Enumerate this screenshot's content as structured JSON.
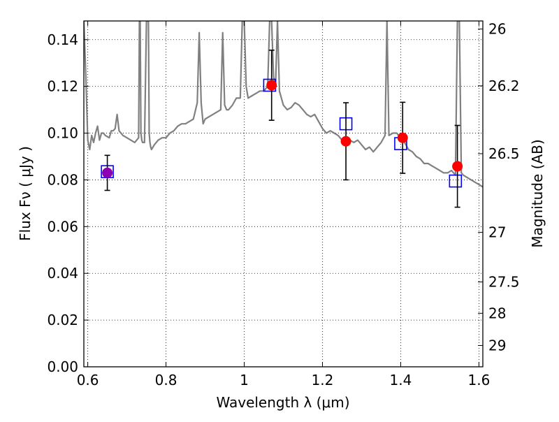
{
  "chart_data": {
    "type": "scatter",
    "xlabel": "Wavelength  λ (μm)",
    "ylabel": "Flux  Fν  ( μJy )",
    "y2label": "Magnitude (AB)",
    "xlim": [
      0.59,
      1.61
    ],
    "ylim": [
      0.0,
      0.148
    ],
    "grid": true,
    "x_ticks": [
      0.6,
      0.8,
      1.0,
      1.2,
      1.4,
      1.6
    ],
    "x_tick_labels": [
      "0.6",
      "0.8",
      "1",
      "1.2",
      "1.4",
      "1.6"
    ],
    "y_ticks": [
      0.0,
      0.02,
      0.04,
      0.06,
      0.08,
      0.1,
      0.12,
      0.14
    ],
    "y_tick_labels": [
      "0.00",
      "0.02",
      "0.04",
      "0.06",
      "0.08",
      "0.10",
      "0.12",
      "0.14"
    ],
    "mag_ticks": [
      26,
      26.2,
      26.5,
      27,
      27.5,
      28,
      29
    ],
    "mag_tick_labels": [
      "26",
      "26.2",
      "26.5",
      "27",
      "27.5",
      "28",
      "29"
    ],
    "observed": {
      "x": [
        0.65,
        1.07,
        1.26,
        1.405,
        1.545
      ],
      "y": [
        0.083,
        0.1205,
        0.0965,
        0.098,
        0.0858
      ],
      "err": [
        0.0075,
        0.015,
        0.0165,
        0.0152,
        0.0175
      ],
      "colors": [
        "#8b00b0",
        "#ff0000",
        "#ff0000",
        "#ff0000",
        "#ff0000"
      ]
    },
    "model_photometry": {
      "x": [
        0.65,
        1.065,
        1.26,
        1.4,
        1.54
      ],
      "y": [
        0.0835,
        0.1205,
        0.104,
        0.0955,
        0.0795
      ]
    },
    "model_spectrum": {
      "x": [
        0.59,
        0.595,
        0.6,
        0.605,
        0.61,
        0.615,
        0.62,
        0.625,
        0.63,
        0.635,
        0.64,
        0.645,
        0.655,
        0.66,
        0.665,
        0.67,
        0.675,
        0.68,
        0.69,
        0.7,
        0.71,
        0.72,
        0.725,
        0.73,
        0.732,
        0.734,
        0.736,
        0.738,
        0.74,
        0.745,
        0.75,
        0.755,
        0.757,
        0.759,
        0.761,
        0.763,
        0.77,
        0.78,
        0.79,
        0.8,
        0.81,
        0.82,
        0.83,
        0.84,
        0.85,
        0.86,
        0.87,
        0.88,
        0.885,
        0.89,
        0.895,
        0.9,
        0.91,
        0.92,
        0.93,
        0.94,
        0.945,
        0.95,
        0.955,
        0.96,
        0.97,
        0.98,
        0.99,
        0.995,
        1.0,
        1.005,
        1.01,
        1.02,
        1.03,
        1.04,
        1.05,
        1.06,
        1.065,
        1.07,
        1.075,
        1.08,
        1.085,
        1.09,
        1.1,
        1.11,
        1.12,
        1.13,
        1.14,
        1.15,
        1.16,
        1.17,
        1.18,
        1.19,
        1.2,
        1.21,
        1.22,
        1.23,
        1.24,
        1.25,
        1.26,
        1.27,
        1.28,
        1.29,
        1.3,
        1.31,
        1.32,
        1.33,
        1.34,
        1.35,
        1.36,
        1.365,
        1.37,
        1.38,
        1.39,
        1.4,
        1.41,
        1.42,
        1.43,
        1.44,
        1.45,
        1.46,
        1.47,
        1.48,
        1.49,
        1.5,
        1.51,
        1.52,
        1.53,
        1.54,
        1.545,
        1.55,
        1.555,
        1.56,
        1.57,
        1.58,
        1.59,
        1.6,
        1.61
      ],
      "y": [
        0.148,
        0.125,
        0.097,
        0.093,
        0.099,
        0.096,
        0.1,
        0.103,
        0.097,
        0.1,
        0.1,
        0.099,
        0.098,
        0.101,
        0.101,
        0.102,
        0.108,
        0.101,
        0.099,
        0.098,
        0.097,
        0.096,
        0.097,
        0.098,
        0.148,
        0.148,
        0.1,
        0.097,
        0.096,
        0.096,
        0.148,
        0.148,
        0.1,
        0.096,
        0.094,
        0.093,
        0.095,
        0.097,
        0.098,
        0.098,
        0.1,
        0.101,
        0.103,
        0.104,
        0.104,
        0.105,
        0.106,
        0.113,
        0.143,
        0.113,
        0.104,
        0.106,
        0.107,
        0.108,
        0.109,
        0.11,
        0.143,
        0.112,
        0.11,
        0.11,
        0.112,
        0.115,
        0.115,
        0.148,
        0.148,
        0.12,
        0.115,
        0.116,
        0.117,
        0.118,
        0.118,
        0.12,
        0.148,
        0.148,
        0.124,
        0.12,
        0.148,
        0.118,
        0.112,
        0.11,
        0.111,
        0.113,
        0.112,
        0.11,
        0.108,
        0.107,
        0.108,
        0.105,
        0.102,
        0.1,
        0.101,
        0.1,
        0.099,
        0.097,
        0.096,
        0.097,
        0.096,
        0.097,
        0.095,
        0.093,
        0.094,
        0.092,
        0.094,
        0.096,
        0.099,
        0.148,
        0.099,
        0.1,
        0.1,
        0.098,
        0.096,
        0.093,
        0.092,
        0.09,
        0.089,
        0.087,
        0.087,
        0.086,
        0.085,
        0.084,
        0.083,
        0.083,
        0.084,
        0.082,
        0.148,
        0.148,
        0.083,
        0.082,
        0.081,
        0.08,
        0.079,
        0.078,
        0.077
      ],
      "color": "#808080"
    }
  }
}
